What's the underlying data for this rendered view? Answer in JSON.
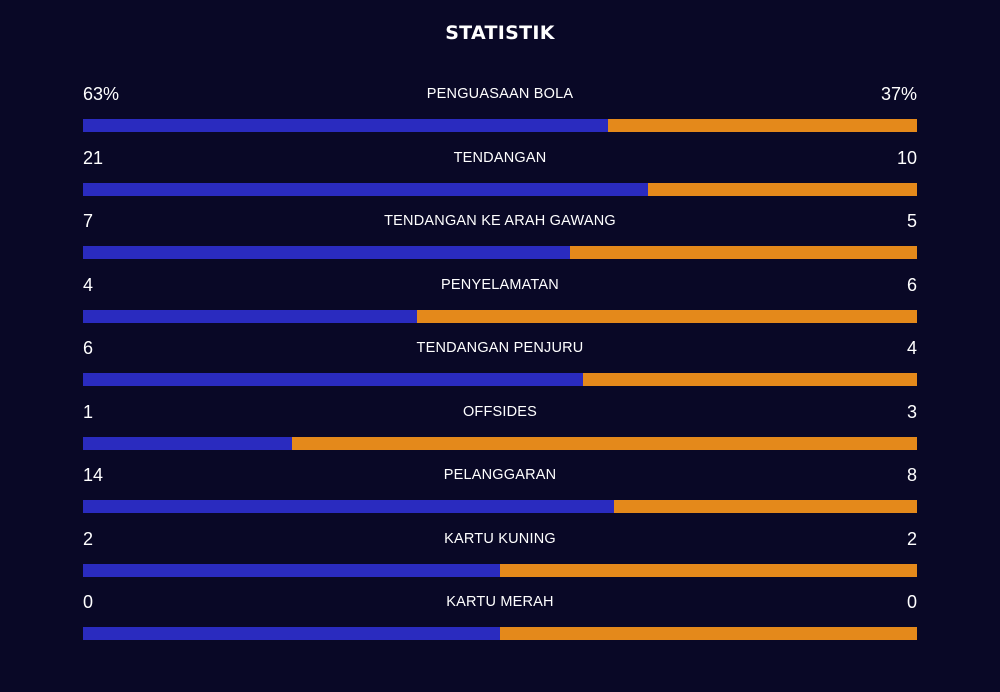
{
  "title": "STATISTIK",
  "colors": {
    "background": "#090826",
    "home": "#2a2bbf",
    "away": "#e4891b"
  },
  "stats": [
    {
      "label": "PENGUASAAN BOLA",
      "home_text": "63%",
      "away_text": "37%",
      "home": 63,
      "away": 37
    },
    {
      "label": "TENDANGAN",
      "home_text": "21",
      "away_text": "10",
      "home": 21,
      "away": 10
    },
    {
      "label": "TENDANGAN KE ARAH GAWANG",
      "home_text": "7",
      "away_text": "5",
      "home": 7,
      "away": 5
    },
    {
      "label": "PENYELAMATAN",
      "home_text": "4",
      "away_text": "6",
      "home": 4,
      "away": 6
    },
    {
      "label": "TENDANGAN PENJURU",
      "home_text": "6",
      "away_text": "4",
      "home": 6,
      "away": 4
    },
    {
      "label": "OFFSIDES",
      "home_text": "1",
      "away_text": "3",
      "home": 1,
      "away": 3
    },
    {
      "label": "PELANGGARAN",
      "home_text": "14",
      "away_text": "8",
      "home": 14,
      "away": 8
    },
    {
      "label": "KARTU KUNING",
      "home_text": "2",
      "away_text": "2",
      "home": 2,
      "away": 2
    },
    {
      "label": "KARTU MERAH",
      "home_text": "0",
      "away_text": "0",
      "home": 0,
      "away": 0
    }
  ]
}
